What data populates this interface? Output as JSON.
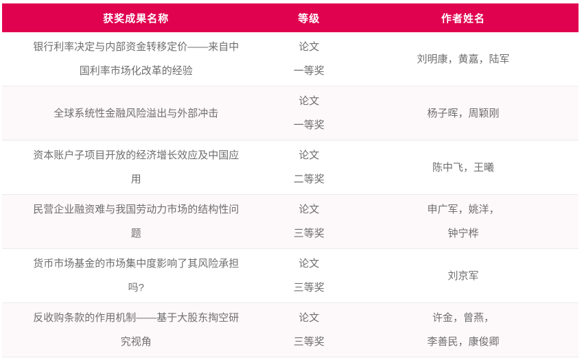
{
  "colors": {
    "header_bg": "#e0024f",
    "header_text": "#ffffff",
    "row_alt_bg": "#fdf8f9",
    "row_border": "#ececec",
    "body_text": "#6e6e6e"
  },
  "table": {
    "columns": [
      {
        "label": "获奖成果名称"
      },
      {
        "label": "等级"
      },
      {
        "label": "作者姓名"
      }
    ],
    "rows": [
      {
        "name": "银行利率决定与内部资金转移定价——来自中国利率市场化改革的经验",
        "level_type": "论文",
        "level_grade": "一等奖",
        "authors": [
          "刘明康，黄嘉，陆军"
        ]
      },
      {
        "name": "全球系统性金融风险溢出与外部冲击",
        "level_type": "论文",
        "level_grade": "一等奖",
        "authors": [
          "杨子晖，周颖刚"
        ]
      },
      {
        "name": "资本账户子项目开放的经济增长效应及中国应用",
        "level_type": "论文",
        "level_grade": "二等奖",
        "authors": [
          "陈中飞，王曦"
        ]
      },
      {
        "name": "民营企业融资难与我国劳动力市场的结构性问题",
        "level_type": "论文",
        "level_grade": "三等奖",
        "authors": [
          "申广军，姚洋，",
          "钟宁桦"
        ]
      },
      {
        "name": "货币市场基金的市场集中度影响了其风险承担吗?",
        "level_type": "论文",
        "level_grade": "三等奖",
        "authors": [
          "刘京军"
        ]
      },
      {
        "name": "反收购条款的作用机制——基于大股东掏空研究视角",
        "level_type": "论文",
        "level_grade": "三等奖",
        "authors": [
          "许金，曾燕，",
          "李善民，康俊卿"
        ]
      }
    ]
  }
}
